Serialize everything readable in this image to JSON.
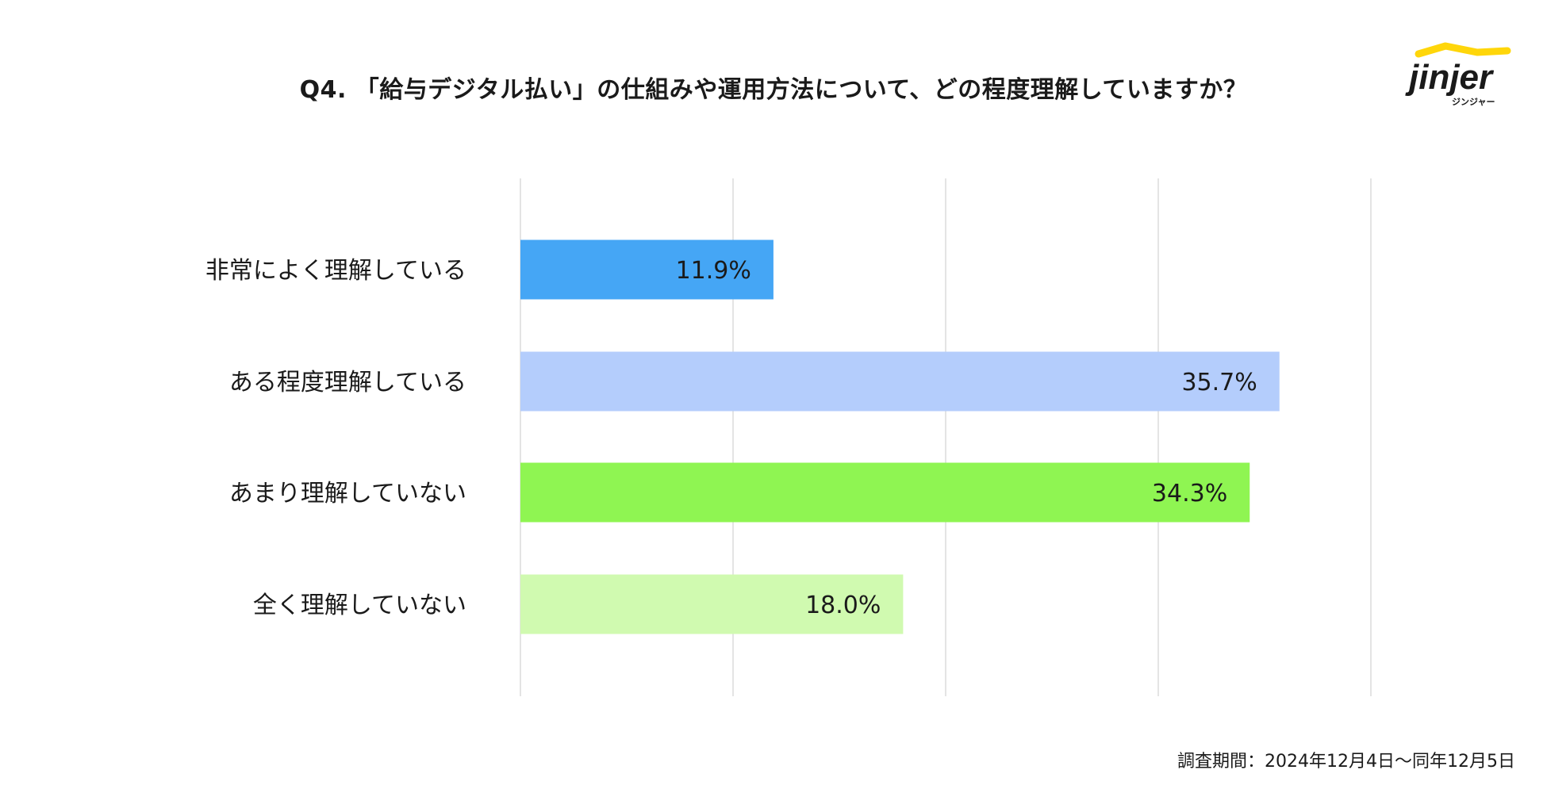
{
  "chart_data": {
    "type": "bar",
    "orientation": "horizontal",
    "title": "Q4. 「給与デジタル払い」の仕組みや運用方法について、どの程度理解していますか？",
    "categories": [
      "非常によく理解している",
      "ある程度理解している",
      "あまり理解していない",
      "全く理解していない"
    ],
    "values": [
      11.9,
      35.7,
      34.3,
      18.0
    ],
    "value_labels": [
      "11.9%",
      "35.7%",
      "34.3%",
      "18.0%"
    ],
    "colors": [
      "#45a6f5",
      "#b4cdfc",
      "#8ff552",
      "#d0fab0"
    ],
    "xlim": [
      0,
      40
    ],
    "grid_step": 10,
    "grid": true,
    "legend": "none"
  },
  "logo": {
    "wordmark": "jinjer",
    "subtext": "ジンジャー",
    "accent_color": "#ffd60a",
    "text_color": "#1a1a1a"
  },
  "footer": {
    "survey_period": "調査期間：2024年12月4日〜同年12月5日"
  }
}
